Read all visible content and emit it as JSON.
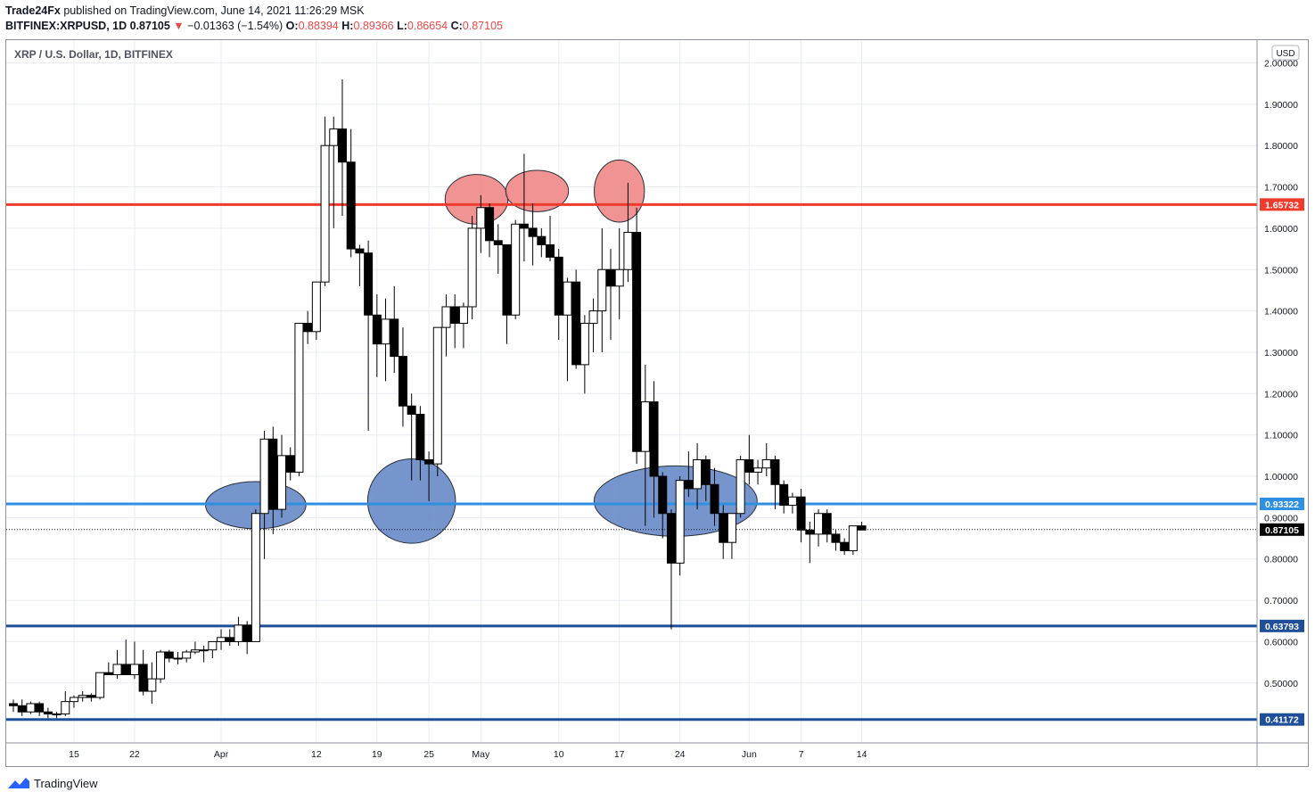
{
  "header": {
    "line1": {
      "publisher": "Trade24Fx",
      "published_text": "published on TradingView.com, June 14, 2021 11:26:29 MSK"
    },
    "line2": {
      "symbol": "BITFINEX:XRPUSD, 1D",
      "last": "0.87105",
      "change_arrow": "▼",
      "change": "−0.01363 (−1.54%)",
      "o_label": "O:",
      "o_value": "0.88394",
      "h_label": "H:",
      "h_value": "0.89366",
      "l_label": "L:",
      "l_value": "0.86654",
      "c_label": "C:",
      "c_value": "0.87105"
    }
  },
  "footer": {
    "brand": "TradingView",
    "icon": "tradingview-logo-icon"
  },
  "chart_data": {
    "type": "candlestick",
    "title": "XRP / U.S. Dollar, 1D, BITFINEX",
    "currency_badge": "USD",
    "ylim": [
      0.355,
      2.055
    ],
    "y_ticks": [
      {
        "value": 2.0,
        "label": "2.00000"
      },
      {
        "value": 1.9,
        "label": "1.90000"
      },
      {
        "value": 1.8,
        "label": "1.80000"
      },
      {
        "value": 1.7,
        "label": "1.70000"
      },
      {
        "value": 1.6,
        "label": "1.60000"
      },
      {
        "value": 1.5,
        "label": "1.50000"
      },
      {
        "value": 1.4,
        "label": "1.40000"
      },
      {
        "value": 1.3,
        "label": "1.30000"
      },
      {
        "value": 1.2,
        "label": "1.20000"
      },
      {
        "value": 1.1,
        "label": "1.10000"
      },
      {
        "value": 1.0,
        "label": "1.00000"
      },
      {
        "value": 0.9,
        "label": "0.90000"
      },
      {
        "value": 0.8,
        "label": "0.80000"
      },
      {
        "value": 0.7,
        "label": "0.70000"
      },
      {
        "value": 0.6,
        "label": "0.60000"
      },
      {
        "value": 0.5,
        "label": "0.50000"
      }
    ],
    "x_ticks": [
      {
        "index": 7,
        "label": "15"
      },
      {
        "index": 14,
        "label": "22"
      },
      {
        "index": 24,
        "label": "Apr"
      },
      {
        "index": 35,
        "label": "12"
      },
      {
        "index": 42,
        "label": "19"
      },
      {
        "index": 48,
        "label": "25"
      },
      {
        "index": 54,
        "label": "May"
      },
      {
        "index": 63,
        "label": "10"
      },
      {
        "index": 70,
        "label": "17"
      },
      {
        "index": 77,
        "label": "24"
      },
      {
        "index": 85,
        "label": "Jun"
      },
      {
        "index": 91,
        "label": "7"
      },
      {
        "index": 98,
        "label": "14"
      }
    ],
    "candles": [
      [
        0.45,
        0.46,
        0.43,
        0.445
      ],
      [
        0.445,
        0.46,
        0.42,
        0.43
      ],
      [
        0.43,
        0.455,
        0.425,
        0.45
      ],
      [
        0.45,
        0.455,
        0.42,
        0.43
      ],
      [
        0.43,
        0.44,
        0.415,
        0.425
      ],
      [
        0.425,
        0.43,
        0.415,
        0.425
      ],
      [
        0.425,
        0.48,
        0.42,
        0.455
      ],
      [
        0.455,
        0.47,
        0.44,
        0.465
      ],
      [
        0.465,
        0.48,
        0.455,
        0.47
      ],
      [
        0.47,
        0.475,
        0.455,
        0.465
      ],
      [
        0.465,
        0.52,
        0.46,
        0.525
      ],
      [
        0.525,
        0.55,
        0.52,
        0.52
      ],
      [
        0.52,
        0.58,
        0.51,
        0.545
      ],
      [
        0.545,
        0.605,
        0.53,
        0.52
      ],
      [
        0.52,
        0.6,
        0.51,
        0.545
      ],
      [
        0.545,
        0.58,
        0.47,
        0.48
      ],
      [
        0.48,
        0.55,
        0.45,
        0.51
      ],
      [
        0.51,
        0.58,
        0.5,
        0.575
      ],
      [
        0.575,
        0.58,
        0.55,
        0.56
      ],
      [
        0.56,
        0.575,
        0.545,
        0.56
      ],
      [
        0.56,
        0.58,
        0.55,
        0.575
      ],
      [
        0.575,
        0.6,
        0.57,
        0.58
      ],
      [
        0.58,
        0.59,
        0.55,
        0.58
      ],
      [
        0.58,
        0.6,
        0.56,
        0.6
      ],
      [
        0.6,
        0.63,
        0.58,
        0.61
      ],
      [
        0.61,
        0.63,
        0.59,
        0.6
      ],
      [
        0.6,
        0.66,
        0.59,
        0.64
      ],
      [
        0.64,
        0.65,
        0.57,
        0.6
      ],
      [
        0.6,
        0.92,
        0.6,
        0.91
      ],
      [
        0.91,
        1.11,
        0.8,
        1.09
      ],
      [
        1.09,
        1.12,
        0.86,
        0.92
      ],
      [
        0.92,
        1.1,
        0.9,
        1.05
      ],
      [
        1.05,
        1.07,
        0.99,
        1.01
      ],
      [
        1.01,
        1.37,
        1.0,
        1.37
      ],
      [
        1.37,
        1.4,
        1.32,
        1.35
      ],
      [
        1.35,
        1.47,
        1.33,
        1.47
      ],
      [
        1.47,
        1.87,
        1.46,
        1.8
      ],
      [
        1.8,
        1.87,
        1.6,
        1.84
      ],
      [
        1.84,
        1.96,
        1.63,
        1.76
      ],
      [
        1.76,
        1.84,
        1.53,
        1.55
      ],
      [
        1.55,
        1.56,
        1.46,
        1.54
      ],
      [
        1.54,
        1.57,
        1.11,
        1.39
      ],
      [
        1.39,
        1.44,
        1.24,
        1.32
      ],
      [
        1.32,
        1.43,
        1.23,
        1.38
      ],
      [
        1.38,
        1.46,
        1.25,
        1.29
      ],
      [
        1.29,
        1.36,
        1.12,
        1.17
      ],
      [
        1.17,
        1.2,
        0.99,
        1.15
      ],
      [
        1.15,
        1.17,
        0.99,
        1.04
      ],
      [
        1.04,
        1.06,
        0.94,
        1.03
      ],
      [
        1.03,
        1.36,
        1.0,
        1.36
      ],
      [
        1.36,
        1.44,
        1.29,
        1.41
      ],
      [
        1.41,
        1.44,
        1.31,
        1.37
      ],
      [
        1.37,
        1.42,
        1.31,
        1.41
      ],
      [
        1.41,
        1.63,
        1.38,
        1.6
      ],
      [
        1.6,
        1.68,
        1.54,
        1.65
      ],
      [
        1.65,
        1.66,
        1.53,
        1.57
      ],
      [
        1.57,
        1.61,
        1.49,
        1.56
      ],
      [
        1.56,
        1.56,
        1.32,
        1.39
      ],
      [
        1.39,
        1.62,
        1.38,
        1.61
      ],
      [
        1.61,
        1.78,
        1.52,
        1.6
      ],
      [
        1.6,
        1.66,
        1.51,
        1.58
      ],
      [
        1.58,
        1.6,
        1.53,
        1.56
      ],
      [
        1.56,
        1.63,
        1.52,
        1.53
      ],
      [
        1.53,
        1.55,
        1.33,
        1.39
      ],
      [
        1.39,
        1.48,
        1.23,
        1.47
      ],
      [
        1.47,
        1.5,
        1.26,
        1.27
      ],
      [
        1.27,
        1.39,
        1.2,
        1.37
      ],
      [
        1.37,
        1.43,
        1.3,
        1.4
      ],
      [
        1.4,
        1.6,
        1.3,
        1.5
      ],
      [
        1.5,
        1.55,
        1.33,
        1.46
      ],
      [
        1.46,
        1.6,
        1.38,
        1.5
      ],
      [
        1.5,
        1.71,
        1.47,
        1.59
      ],
      [
        1.59,
        1.65,
        1.03,
        1.06
      ],
      [
        1.06,
        1.27,
        0.88,
        1.18
      ],
      [
        1.18,
        1.23,
        0.9,
        1.0
      ],
      [
        1.0,
        1.01,
        0.85,
        0.91
      ],
      [
        0.91,
        0.92,
        0.63,
        0.79
      ],
      [
        0.79,
        1.0,
        0.76,
        0.99
      ],
      [
        0.99,
        1.06,
        0.95,
        0.97
      ],
      [
        0.97,
        1.08,
        0.92,
        1.04
      ],
      [
        1.04,
        1.05,
        0.94,
        0.98
      ],
      [
        0.98,
        1.02,
        0.88,
        0.91
      ],
      [
        0.91,
        0.93,
        0.8,
        0.84
      ],
      [
        0.84,
        0.91,
        0.8,
        0.91
      ],
      [
        0.91,
        1.05,
        0.9,
        1.04
      ],
      [
        1.04,
        1.1,
        0.98,
        1.01
      ],
      [
        1.01,
        1.04,
        0.98,
        1.02
      ],
      [
        1.02,
        1.08,
        1.0,
        1.04
      ],
      [
        1.04,
        1.05,
        0.92,
        0.98
      ],
      [
        0.98,
        0.99,
        0.91,
        0.93
      ],
      [
        0.93,
        0.96,
        0.91,
        0.95
      ],
      [
        0.95,
        0.97,
        0.84,
        0.87
      ],
      [
        0.87,
        0.89,
        0.79,
        0.86
      ],
      [
        0.86,
        0.92,
        0.83,
        0.91
      ],
      [
        0.91,
        0.92,
        0.84,
        0.86
      ],
      [
        0.86,
        0.87,
        0.82,
        0.84
      ],
      [
        0.84,
        0.85,
        0.81,
        0.82
      ],
      [
        0.82,
        0.88,
        0.81,
        0.88
      ],
      [
        0.88,
        0.89,
        0.87,
        0.87
      ]
    ],
    "horizontal_lines": [
      {
        "value": 1.65732,
        "label": "1.65732",
        "color": "#ef3b2c",
        "style": "solid"
      },
      {
        "value": 0.93322,
        "label": "0.93322",
        "color": "#2f8fe0",
        "style": "solid"
      },
      {
        "value": 0.63793,
        "label": "0.63793",
        "color": "#1f4f99",
        "style": "solid"
      },
      {
        "value": 0.41172,
        "label": "0.41172",
        "color": "#1f4f99",
        "style": "solid"
      },
      {
        "value": 0.87105,
        "label": "0.87105",
        "color": "#131722",
        "style": "dotted"
      }
    ],
    "ellipses": [
      {
        "center_index": 53.5,
        "center_value": 1.67,
        "rx_bars": 2.5,
        "ry_value": 0.06,
        "color": "#f08080"
      },
      {
        "center_index": 60.5,
        "center_value": 1.69,
        "rx_bars": 2.5,
        "ry_value": 0.05,
        "color": "#f08080"
      },
      {
        "center_index": 70.0,
        "center_value": 1.69,
        "rx_bars": 2.0,
        "ry_value": 0.075,
        "color": "#f08080"
      },
      {
        "center_index": 28.0,
        "center_value": 0.93,
        "rx_bars": 4.0,
        "ry_value": 0.057,
        "color": "#5f83c4"
      },
      {
        "center_index": 46.0,
        "center_value": 0.94,
        "rx_bars": 3.5,
        "ry_value": 0.102,
        "color": "#5f83c4"
      },
      {
        "center_index": 76.5,
        "center_value": 0.94,
        "rx_bars": 6.5,
        "ry_value": 0.085,
        "color": "#5f83c4"
      }
    ],
    "colors": {
      "up_fill": "#ffffff",
      "down_fill": "#000000",
      "outline": "#000000",
      "grid": "#e9ecf2"
    }
  }
}
